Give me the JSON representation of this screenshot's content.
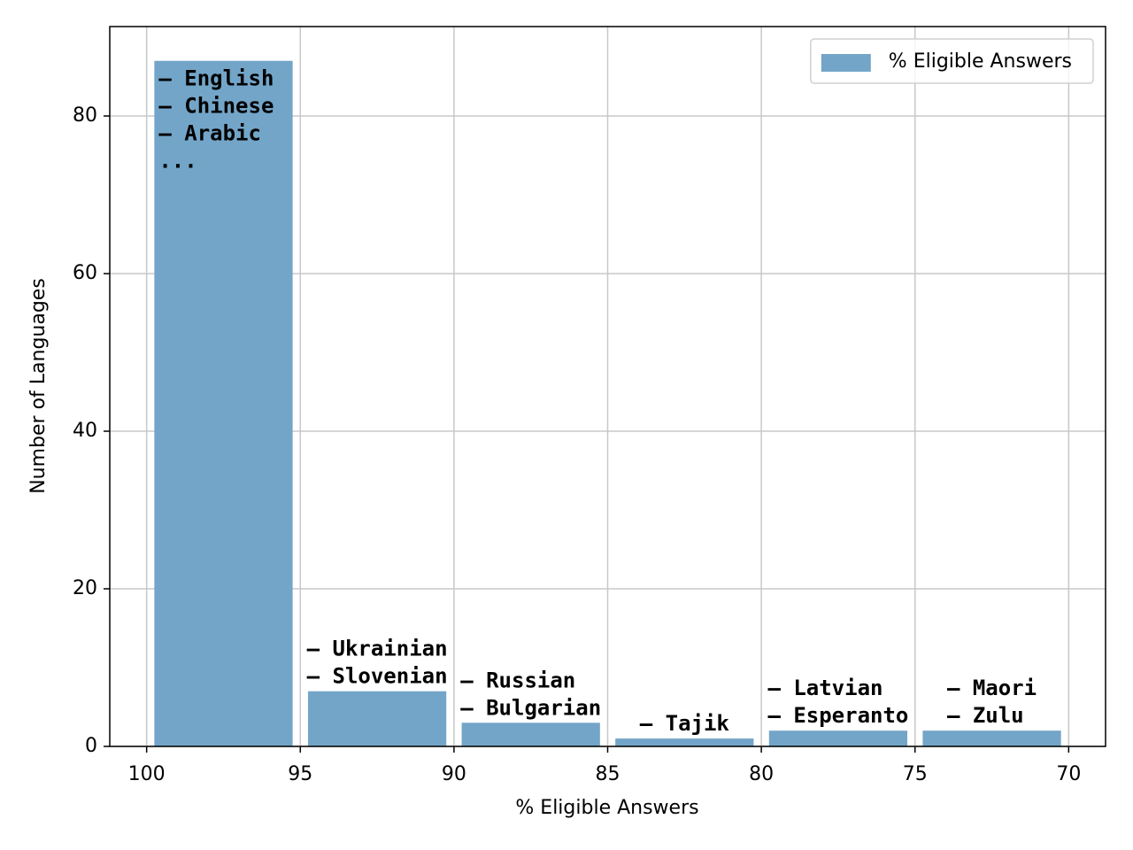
{
  "chart_data": {
    "type": "histogram",
    "xlabel": "% Eligible Answers",
    "ylabel": "Number of Languages",
    "bins": [
      100,
      95,
      90,
      85,
      80,
      75,
      70
    ],
    "counts": [
      87,
      7,
      3,
      1,
      2,
      2
    ],
    "series_name": "% Eligible Answers",
    "color": "#73a5c8",
    "xlim": [
      101.2,
      68.8
    ],
    "ylim": [
      0,
      91.35
    ],
    "xticks": [
      100,
      95,
      90,
      85,
      80,
      75,
      70
    ],
    "yticks": [
      0,
      20,
      40,
      60,
      80
    ],
    "grid": true,
    "legend": "upper right",
    "annotations": [
      [
        "– English",
        "– Chinese",
        "– Arabic",
        "..."
      ],
      [
        "– Ukrainian",
        "– Slovenian"
      ],
      [
        "– Russian",
        "– Bulgarian"
      ],
      [
        "– Tajik"
      ],
      [
        "– Latvian",
        "– Esperanto"
      ],
      [
        "– Maori",
        "– Zulu"
      ]
    ],
    "annotation_colors": [
      "#ffffff",
      "#000000",
      "#000000",
      "#000000",
      "#000000",
      "#000000"
    ]
  }
}
